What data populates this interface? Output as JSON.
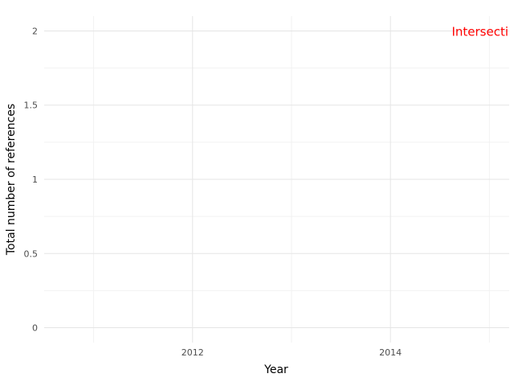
{
  "chart_data": {
    "type": "line",
    "xlabel": "Year",
    "ylabel": "Total number of references",
    "xlim": [
      2010.5,
      2015.2
    ],
    "ylim": [
      -0.1,
      2.1
    ],
    "x_ticks": [
      2012,
      2014
    ],
    "x_tick_labels": [
      "2012",
      "2014"
    ],
    "y_ticks": [
      0,
      0.5,
      1,
      1.5,
      2
    ],
    "y_tick_labels": [
      "0",
      "0.5",
      "1",
      "1.5",
      "2"
    ],
    "grid": true,
    "series": [],
    "annotations": [
      {
        "text": "Intersecti",
        "x": 2015.2,
        "y": 2,
        "color": "#ff0000",
        "align": "right"
      }
    ]
  }
}
